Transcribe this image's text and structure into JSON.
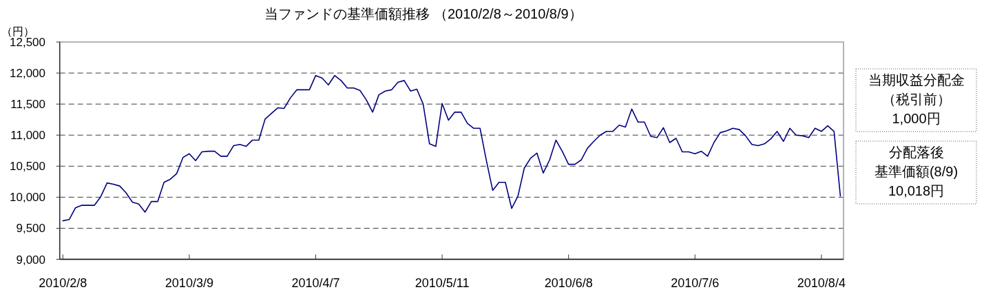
{
  "chart_data": {
    "type": "line",
    "title": "当ファンドの基準価額推移 （2010/2/8～2010/8/9）",
    "ylabel": "（円）",
    "categories": [
      "2010/2/8",
      null,
      null,
      null,
      null,
      null,
      null,
      null,
      null,
      null,
      null,
      null,
      null,
      null,
      null,
      null,
      null,
      null,
      null,
      null,
      "2010/3/9",
      null,
      null,
      null,
      null,
      null,
      null,
      null,
      null,
      null,
      null,
      null,
      null,
      null,
      null,
      null,
      null,
      null,
      null,
      null,
      "2010/4/7",
      null,
      null,
      null,
      null,
      null,
      null,
      null,
      null,
      null,
      null,
      null,
      null,
      null,
      null,
      null,
      null,
      null,
      null,
      null,
      "2010/5/11",
      null,
      null,
      null,
      null,
      null,
      null,
      null,
      null,
      null,
      null,
      null,
      null,
      null,
      null,
      null,
      null,
      null,
      null,
      null,
      "2010/6/8",
      null,
      null,
      null,
      null,
      null,
      null,
      null,
      null,
      null,
      null,
      null,
      null,
      null,
      null,
      null,
      null,
      null,
      null,
      null,
      "2010/7/6",
      null,
      null,
      null,
      null,
      null,
      null,
      null,
      null,
      null,
      null,
      null,
      null,
      null,
      null,
      null,
      null,
      null,
      null,
      null,
      "2010/8/4",
      null,
      null,
      null
    ],
    "series": [
      {
        "color": "#000080",
        "values": [
          9620,
          9640,
          9830,
          9870,
          9870,
          9870,
          10010,
          10230,
          10210,
          10180,
          10070,
          9920,
          9890,
          9760,
          9930,
          9930,
          10240,
          10290,
          10380,
          10640,
          10700,
          10590,
          10730,
          10740,
          10740,
          10660,
          10660,
          10830,
          10850,
          10820,
          10920,
          10920,
          11260,
          11350,
          11440,
          11430,
          11600,
          11730,
          11730,
          11730,
          11960,
          11920,
          11810,
          11960,
          11880,
          11760,
          11760,
          11720,
          11570,
          11370,
          11650,
          11710,
          11730,
          11850,
          11880,
          11710,
          11740,
          11500,
          10860,
          10820,
          11510,
          11240,
          11370,
          11370,
          11190,
          11110,
          11110,
          10590,
          10110,
          10240,
          10240,
          9820,
          10020,
          10470,
          10630,
          10710,
          10390,
          10600,
          10920,
          10740,
          10530,
          10530,
          10600,
          10790,
          10900,
          11000,
          11060,
          11060,
          11160,
          11130,
          11420,
          11210,
          11210,
          10980,
          10960,
          11120,
          10880,
          10950,
          10730,
          10730,
          10700,
          10740,
          10660,
          10880,
          11040,
          11070,
          11110,
          11090,
          10990,
          10850,
          10830,
          10860,
          10940,
          11060,
          10900,
          11110,
          11000,
          10990,
          10960,
          11110,
          11060,
          11150,
          11060,
          10018
        ]
      }
    ],
    "ylim": [
      9000,
      12500
    ],
    "yticks": [
      {
        "value": 9000,
        "label": "9,000"
      },
      {
        "value": 9500,
        "label": "9,500"
      },
      {
        "value": 10000,
        "label": "10,000"
      },
      {
        "value": 10500,
        "label": "10,500"
      },
      {
        "value": 11000,
        "label": "11,000"
      },
      {
        "value": 11500,
        "label": "11,500"
      },
      {
        "value": 12000,
        "label": "12,000"
      },
      {
        "value": 12500,
        "label": "12,500"
      }
    ],
    "grid": "y",
    "line_style": "solid",
    "annotations": [
      "当期収益分配金",
      "（税引前）",
      "1,000円",
      "分配落後",
      "基準価額(8/9)",
      "10,018円"
    ]
  }
}
